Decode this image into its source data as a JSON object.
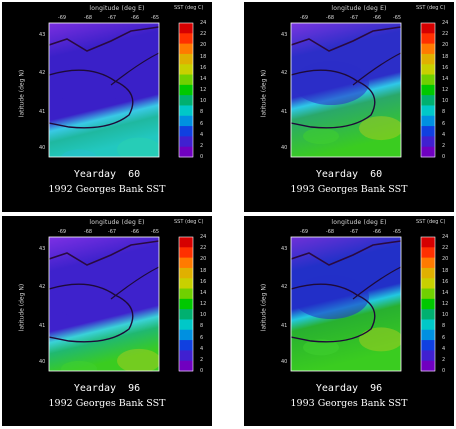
{
  "colorbar": {
    "label": "SST (deg C)",
    "ticks": [
      "24",
      "22",
      "20",
      "18",
      "16",
      "14",
      "12",
      "10",
      "8",
      "6",
      "4",
      "2",
      "0"
    ],
    "colors": [
      "#d60000",
      "#ff3000",
      "#ff7a00",
      "#e0b000",
      "#c8d000",
      "#70d000",
      "#00c800",
      "#00b070",
      "#00c8c8",
      "#0090e0",
      "#1040e0",
      "#4020d0",
      "#7000c0"
    ]
  },
  "axes": {
    "xlabel": "longitude (deg E)",
    "ylabel": "latitude (deg N)",
    "xticks": [
      "-69",
      "-68",
      "-67",
      "-66",
      "-65"
    ],
    "yticks": [
      "43",
      "42",
      "41",
      "40"
    ]
  },
  "panels": [
    {
      "yearday_label": "Yearday",
      "yearday": "60",
      "title": "1992 Georges Bank SST"
    },
    {
      "yearday_label": "Yearday",
      "yearday": "60",
      "title": "1993 Georges Bank SST"
    },
    {
      "yearday_label": "Yearday",
      "yearday": "96",
      "title": "1992 Georges Bank SST"
    },
    {
      "yearday_label": "Yearday",
      "yearday": "96",
      "title": "1993 Georges Bank SST"
    }
  ]
}
